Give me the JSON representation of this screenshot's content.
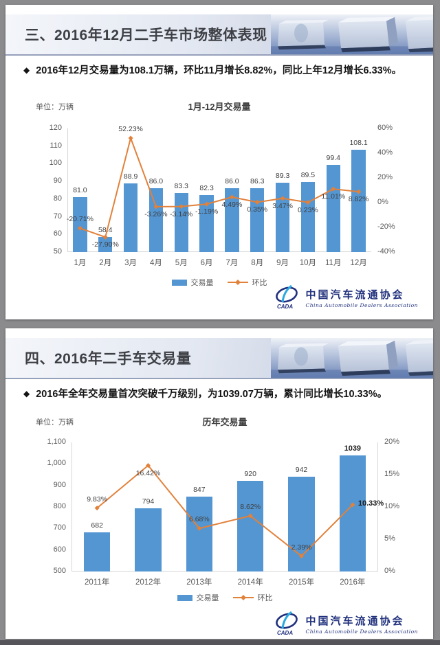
{
  "colors": {
    "bar": "#5496d2",
    "line": "#e2813a",
    "banner_edge": "#95a0ba",
    "logo_navy": "#20307c",
    "logo_cyan": "#2aa9df"
  },
  "logo": {
    "cn": "中国汽车流通协会",
    "en": "China Automobile Dealers Association",
    "mark": "CADA"
  },
  "slides": [
    {
      "title": "三、2016年12月二手车市场整体表现",
      "bullet_marker": "◆",
      "bullet": "2016年12月交易量为108.1万辆，环比11月增长8.82%，同比上年12月增长6.33%。",
      "unit_label": "单位：万辆",
      "chart_title": "1月-12月交易量",
      "legend": {
        "bar": "交易量",
        "line": "环比"
      }
    },
    {
      "title": "四、2016年二手车交易量",
      "bullet_marker": "◆",
      "bullet": "2016年全年交易量首次突破千万级别，为1039.07万辆，累计同比增长10.33%。",
      "unit_label": "单位：万辆",
      "chart_title": "历年交易量",
      "legend": {
        "bar": "交易量",
        "line": "环比"
      }
    }
  ],
  "chart_data": [
    {
      "type": "bar",
      "combo": "bar+line",
      "title": "1月-12月交易量",
      "unit": "万辆",
      "categories": [
        "1月",
        "2月",
        "3月",
        "4月",
        "5月",
        "6月",
        "7月",
        "8月",
        "9月",
        "10月",
        "11月",
        "12月"
      ],
      "series": [
        {
          "name": "交易量",
          "type": "bar",
          "axis": "left",
          "values": [
            81.0,
            58.4,
            88.9,
            86.0,
            83.3,
            82.3,
            86.0,
            86.3,
            89.3,
            89.5,
            99.4,
            108.1
          ],
          "labels": [
            "81.0",
            "58.4",
            "88.9",
            "86.0",
            "83.3",
            "82.3",
            "86.0",
            "86.3",
            "89.3",
            "89.5",
            "99.4",
            "108.1"
          ]
        },
        {
          "name": "环比",
          "type": "line",
          "axis": "right",
          "values": [
            -20.71,
            -27.9,
            52.23,
            -3.26,
            -3.14,
            -1.19,
            4.49,
            0.35,
            3.47,
            0.23,
            11.01,
            8.82
          ],
          "labels": [
            "-20.71%",
            "-27.90%",
            "52.23%",
            "-3.26%",
            "-3.14%",
            "-1.19%",
            "4.49%",
            "0.35%",
            "3.47%",
            "0.23%",
            "11.01%",
            "8.82%"
          ],
          "label_positions": [
            "above",
            "below",
            "above",
            "below",
            "below",
            "below",
            "below",
            "below",
            "below",
            "below",
            "below",
            "below"
          ]
        }
      ],
      "left_axis": {
        "min": 50,
        "max": 120,
        "ticks": [
          "120",
          "110",
          "100",
          "90",
          "80",
          "70",
          "60",
          "50"
        ]
      },
      "right_axis": {
        "min": -40,
        "max": 60,
        "ticks": [
          "60%",
          "40%",
          "20%",
          "0%",
          "-20%",
          "-40%"
        ]
      },
      "grid": false,
      "legend_position": "bottom"
    },
    {
      "type": "bar",
      "combo": "bar+line",
      "title": "历年交易量",
      "unit": "万辆",
      "categories": [
        "2011年",
        "2012年",
        "2013年",
        "2014年",
        "2015年",
        "2016年"
      ],
      "series": [
        {
          "name": "交易量",
          "type": "bar",
          "axis": "left",
          "values": [
            682,
            794,
            847,
            920,
            942,
            1039
          ],
          "labels": [
            "682",
            "794",
            "847",
            "920",
            "942",
            "1039"
          ],
          "bold": [
            false,
            false,
            false,
            false,
            false,
            true
          ]
        },
        {
          "name": "环比",
          "type": "line",
          "axis": "right",
          "values": [
            9.83,
            16.42,
            6.68,
            8.62,
            2.39,
            10.33
          ],
          "labels": [
            "9.83%",
            "16.42%",
            "6.68%",
            "8.62%",
            "2.39%",
            "10.33%"
          ],
          "label_positions": [
            "above",
            "below",
            "above",
            "above",
            "above",
            "right"
          ],
          "bold": [
            false,
            false,
            false,
            false,
            false,
            true
          ]
        }
      ],
      "left_axis": {
        "min": 500,
        "max": 1100,
        "ticks": [
          "1,100",
          "1,000",
          "900",
          "800",
          "700",
          "600",
          "500"
        ]
      },
      "right_axis": {
        "min": 0,
        "max": 20,
        "ticks": [
          "20%",
          "15%",
          "10%",
          "5%",
          "0%"
        ]
      },
      "grid": false,
      "legend_position": "bottom"
    }
  ]
}
